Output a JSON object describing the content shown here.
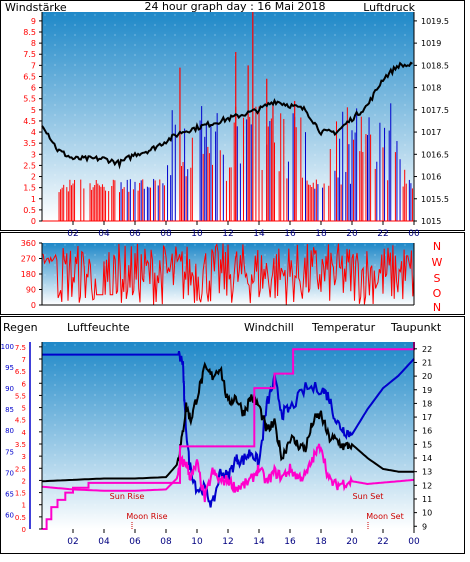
{
  "colors": {
    "red": "#ff0000",
    "blue": "#0000cc",
    "black": "#000000",
    "magenta": "#ff00cc",
    "navy": "#000080",
    "green": "#008000",
    "dark_red": "#cc0000",
    "sky_top": "#1e88c8",
    "sky_bottom": "#ffffff"
  },
  "chart_data": [
    {
      "type": "line",
      "title": "24 hour graph day : 16 Mai 2018",
      "left_label": "Windstärke",
      "right_label": "Luftdruck",
      "x_ticks": [
        "02",
        "04",
        "06",
        "08",
        "10",
        "12",
        "14",
        "16",
        "18",
        "20",
        "22",
        "00"
      ],
      "y_left_ticks": [
        "0",
        "0.5",
        "1",
        "1.5",
        "2",
        "2.5",
        "3",
        "3.5",
        "4",
        "4.5",
        "5",
        "5.5",
        "6",
        "6.5",
        "7",
        "7.5",
        "8",
        "8.5",
        "9"
      ],
      "y_left_range": [
        0,
        9.4
      ],
      "y_right_ticks": [
        "1015",
        "1015.5",
        "1016",
        "1016.5",
        "1017",
        "1017.5",
        "1018",
        "1018.5",
        "1019",
        "1019.5"
      ],
      "y_right_range": [
        1015,
        1019.7
      ],
      "series": [
        {
          "name": "Luftdruck",
          "axis": "right",
          "color": "black",
          "x": [
            0,
            1,
            2,
            3,
            4,
            5,
            6,
            7,
            8,
            9,
            10,
            11,
            12,
            13,
            14,
            15,
            16,
            17,
            18,
            19,
            20,
            21,
            22,
            23,
            24
          ],
          "y": [
            1017.2,
            1016.6,
            1016.4,
            1016.4,
            1016.4,
            1016.3,
            1016.5,
            1016.6,
            1016.8,
            1017.0,
            1017.1,
            1017.2,
            1017.3,
            1017.4,
            1017.5,
            1017.7,
            1017.6,
            1017.5,
            1017.0,
            1017.0,
            1017.3,
            1017.6,
            1018.2,
            1018.5,
            1018.5
          ]
        },
        {
          "name": "Windstärke",
          "axis": "left",
          "color": "red",
          "x": [
            8.9,
            12.5,
            13.3,
            13.6,
            14.5,
            14.9,
            16.3
          ],
          "y": [
            6.9,
            7.6,
            7.0,
            9.4,
            6.4,
            5.3,
            5.4
          ]
        }
      ]
    },
    {
      "type": "scatter",
      "title": "",
      "y_ticks": [
        "0",
        "90",
        "180",
        "270",
        "360"
      ],
      "y_range": [
        0,
        360
      ],
      "right_letters": [
        "N",
        "W",
        "S",
        "O",
        "N"
      ],
      "x_ticks": [
        "02",
        "04",
        "06",
        "08",
        "10",
        "12",
        "14",
        "16",
        "18",
        "20",
        "22",
        "00"
      ]
    },
    {
      "type": "line",
      "legend": [
        "Regen",
        "Luftfeuchte",
        "Windchill",
        "Temperatur",
        "Taupunkt"
      ],
      "x_ticks": [
        "02",
        "04",
        "06",
        "08",
        "10",
        "12",
        "14",
        "16",
        "18",
        "20",
        "22",
        "00"
      ],
      "y_rain_ticks": [
        "0",
        "0.5",
        "1",
        "1.5",
        "2",
        "2.5",
        "3",
        "3.5",
        "4",
        "4.5",
        "5",
        "5.5",
        "6",
        "6.5",
        "7",
        "7.5"
      ],
      "y_rain_range": [
        0,
        7.7
      ],
      "y_humidity_ticks": [
        "60",
        "65",
        "70",
        "75",
        "80",
        "85",
        "90",
        "95",
        "100"
      ],
      "y_humidity_range": [
        56.5,
        101
      ],
      "y_temp_ticks": [
        "9",
        "10",
        "11",
        "12",
        "13",
        "14",
        "15",
        "16",
        "17",
        "18",
        "19",
        "20",
        "21",
        "22"
      ],
      "y_temp_range": [
        8.8,
        22.5
      ],
      "annotations": [
        "Sun Rise",
        "Moon Rise",
        "Sun Set",
        "Moon Set"
      ],
      "series": [
        {
          "name": "Luftfeuchte",
          "color": "blue",
          "x": [
            0,
            2,
            4,
            6,
            8,
            8.8,
            9.1,
            9.2,
            9.5,
            10,
            10.5,
            11,
            11.5,
            12,
            12.5,
            13,
            13.5,
            14,
            14.5,
            15,
            15.5,
            16,
            17,
            18,
            18.5,
            19,
            19.5,
            20,
            21,
            22,
            23,
            24
          ],
          "y": [
            98,
            98,
            98,
            98,
            98,
            98,
            96,
            85,
            72,
            66,
            66,
            62,
            70,
            69,
            73,
            73,
            75,
            72,
            86,
            92,
            84,
            85,
            90,
            90,
            88,
            82,
            80,
            79,
            85,
            90,
            93,
            97
          ]
        },
        {
          "name": "Temperatur",
          "color": "black",
          "x": [
            0,
            2,
            4,
            6,
            8,
            8.7,
            9.0,
            9.3,
            9.6,
            10,
            10.5,
            11,
            11.5,
            12,
            12.5,
            13,
            13.5,
            14,
            14.5,
            15,
            15.5,
            16,
            16.5,
            17,
            17.5,
            18,
            18.5,
            19,
            19.5,
            20,
            21,
            22,
            23,
            24
          ],
          "y": [
            12.3,
            12.4,
            12.5,
            12.5,
            12.6,
            13.5,
            15.2,
            17.8,
            16.8,
            18.5,
            20.5,
            20.0,
            20.7,
            18.0,
            18.5,
            17.3,
            18.5,
            17.8,
            16.0,
            16.5,
            14.0,
            15.5,
            15.0,
            14.7,
            16.7,
            17.2,
            15.5,
            15.3,
            14.8,
            15.0,
            14.0,
            13.2,
            13.0,
            13.0
          ]
        },
        {
          "name": "Taupunkt",
          "color": "magenta",
          "x": [
            0,
            2,
            4,
            6,
            8,
            8.7,
            9.0,
            9.3,
            9.6,
            10,
            10.5,
            11,
            11.5,
            12,
            12.5,
            13,
            13.5,
            14,
            14.5,
            15,
            15.5,
            16,
            16.5,
            17,
            17.5,
            18,
            18.5,
            19,
            19.5,
            20,
            21,
            22,
            23,
            24
          ],
          "y": [
            11.9,
            11.7,
            11.6,
            11.6,
            11.7,
            12.5,
            13.7,
            13.6,
            12.5,
            13.6,
            11.0,
            13.0,
            12.3,
            12.4,
            11.8,
            12.0,
            12.4,
            13.3,
            12.2,
            13.0,
            12.6,
            13.2,
            12.6,
            12.7,
            14.0,
            15.0,
            12.4,
            12.0,
            12.2,
            12.3,
            12.1,
            12.2,
            12.3,
            12.4
          ]
        },
        {
          "name": "Regen",
          "color": "magenta",
          "step": true,
          "x": [
            0,
            0.3,
            0.6,
            1.0,
            1.5,
            2.0,
            3.0,
            8.9,
            13.7,
            15.0,
            16.2,
            20.0,
            21.0,
            24.0
          ],
          "y": [
            0.0,
            0.4,
            0.9,
            1.2,
            1.5,
            1.7,
            1.9,
            3.4,
            5.8,
            6.4,
            7.4,
            7.4,
            7.4,
            7.7
          ]
        }
      ]
    }
  ]
}
